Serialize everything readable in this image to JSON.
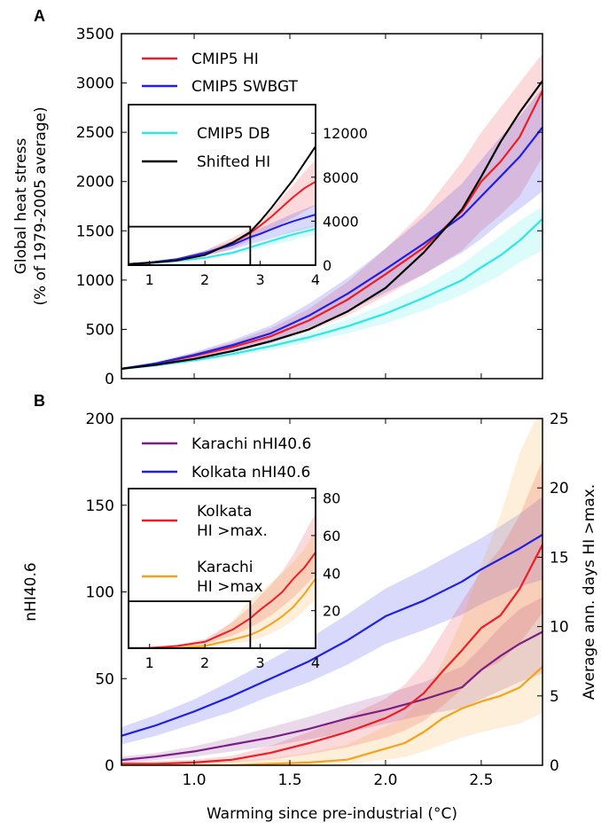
{
  "chart_data": [
    {
      "panel_letter": "A",
      "type": "line",
      "ylabel": [
        "Global heat stress",
        "(% of 1979-2005 average)"
      ],
      "xlim": [
        0.62,
        2.82
      ],
      "ylim": [
        0,
        3500
      ],
      "xticks": [
        1.0,
        1.5,
        2.0,
        2.5
      ],
      "xtick_labels": [],
      "yticks": [
        0,
        500,
        1000,
        1500,
        2000,
        2500,
        3000,
        3500
      ],
      "legend_loc": "top-left",
      "series": [
        {
          "name": "CMIP5 HI",
          "color": "#ee1c24",
          "x": [
            0.62,
            0.8,
            1.0,
            1.2,
            1.4,
            1.6,
            1.8,
            2.0,
            2.2,
            2.4,
            2.5,
            2.6,
            2.7,
            2.82
          ],
          "y": [
            100,
            150,
            230,
            320,
            430,
            590,
            800,
            1060,
            1330,
            1700,
            2000,
            2200,
            2450,
            2920
          ],
          "band_low": [
            100,
            140,
            200,
            270,
            360,
            480,
            640,
            840,
            1060,
            1300,
            1500,
            1660,
            1850,
            2250
          ],
          "band_high": [
            100,
            160,
            260,
            370,
            510,
            710,
            980,
            1320,
            1700,
            2200,
            2500,
            2750,
            3000,
            3300
          ]
        },
        {
          "name": "CMIP5 SWBGT",
          "color": "#1f1fe6",
          "x": [
            0.62,
            0.8,
            1.0,
            1.2,
            1.4,
            1.6,
            1.8,
            2.0,
            2.2,
            2.4,
            2.5,
            2.6,
            2.7,
            2.82
          ],
          "y": [
            100,
            155,
            240,
            340,
            460,
            640,
            860,
            1110,
            1370,
            1650,
            1850,
            2050,
            2250,
            2550
          ],
          "band_low": [
            100,
            140,
            210,
            290,
            380,
            520,
            680,
            870,
            1060,
            1280,
            1420,
            1580,
            1720,
            1900
          ],
          "band_high": [
            100,
            170,
            270,
            390,
            540,
            760,
            1020,
            1320,
            1640,
            1980,
            2220,
            2450,
            2660,
            2950
          ]
        },
        {
          "name": "CMIP5 DB",
          "color": "#2de6e6",
          "x": [
            0.62,
            0.8,
            1.0,
            1.2,
            1.4,
            1.6,
            1.8,
            2.0,
            2.2,
            2.4,
            2.5,
            2.6,
            2.7,
            2.82
          ],
          "y": [
            100,
            135,
            185,
            250,
            330,
            420,
            530,
            660,
            820,
            1000,
            1130,
            1250,
            1400,
            1620
          ],
          "band_low": [
            100,
            128,
            170,
            225,
            290,
            370,
            460,
            560,
            690,
            850,
            950,
            1050,
            1180,
            1300
          ],
          "band_high": [
            100,
            142,
            200,
            275,
            370,
            470,
            600,
            760,
            940,
            1160,
            1310,
            1450,
            1600,
            1750
          ]
        },
        {
          "name": "Shifted HI",
          "color": "#000000",
          "x": [
            0.62,
            0.8,
            1.0,
            1.2,
            1.4,
            1.6,
            1.8,
            2.0,
            2.2,
            2.3,
            2.4,
            2.5,
            2.6,
            2.7,
            2.82
          ],
          "y": [
            100,
            140,
            200,
            280,
            380,
            500,
            680,
            920,
            1280,
            1500,
            1720,
            2050,
            2400,
            2700,
            3020
          ]
        }
      ],
      "inset": {
        "xlim": [
          0.62,
          4.0
        ],
        "ylim": [
          0,
          14600
        ],
        "xticks": [
          1,
          2,
          3,
          4
        ],
        "yticks": [
          0,
          4000,
          8000,
          12000
        ],
        "box_x": 2.82,
        "box_y": 3500,
        "series": [
          {
            "name": "CMIP5 HI",
            "color": "#ee1c24",
            "x": [
              0.62,
              1.0,
              1.5,
              2.0,
              2.5,
              2.82,
              3.0,
              3.2,
              3.4,
              3.6,
              3.8,
              4.0
            ],
            "y": [
              100,
              230,
              520,
              1060,
              2000,
              2920,
              3600,
              4400,
              5300,
              6200,
              7000,
              7600
            ],
            "band_low": [
              100,
              200,
              440,
              840,
              1500,
              2250,
              2700,
              3200,
              3800,
              4300,
              4900,
              5400
            ],
            "band_high": [
              100,
              260,
              620,
              1320,
              2500,
              3300,
              4100,
              5000,
              6200,
              7300,
              8500,
              9600
            ]
          },
          {
            "name": "CMIP5 SWBGT",
            "color": "#1f1fe6",
            "x": [
              0.62,
              1.0,
              1.5,
              2.0,
              2.5,
              2.82,
              3.0,
              3.2,
              3.4,
              3.6,
              3.8,
              4.0
            ],
            "y": [
              100,
              240,
              550,
              1110,
              1850,
              2550,
              2850,
              3250,
              3650,
              4000,
              4300,
              4600
            ],
            "band_low": [
              100,
              210,
              460,
              870,
              1420,
              1900,
              2150,
              2450,
              2750,
              3000,
              3250,
              3500
            ],
            "band_high": [
              100,
              270,
              650,
              1320,
              2220,
              2950,
              3350,
              3800,
              4250,
              4700,
              5100,
              5500
            ]
          },
          {
            "name": "CMIP5 DB",
            "color": "#2de6e6",
            "x": [
              0.62,
              1.0,
              1.5,
              2.0,
              2.5,
              2.82,
              3.0,
              3.2,
              3.4,
              3.6,
              3.8,
              4.0
            ],
            "y": [
              100,
              185,
              370,
              660,
              1130,
              1620,
              1900,
              2200,
              2500,
              2800,
              3050,
              3300
            ],
            "band_low": [
              100,
              170,
              330,
              560,
              950,
              1300,
              1550,
              1800,
              2050,
              2300,
              2550,
              2750
            ],
            "band_high": [
              100,
              200,
              420,
              760,
              1310,
              1750,
              2100,
              2450,
              2800,
              3150,
              3450,
              3700
            ]
          },
          {
            "name": "Shifted HI",
            "color": "#000000",
            "x": [
              0.62,
              1.0,
              1.5,
              2.0,
              2.5,
              2.82,
              3.0,
              3.2,
              3.4,
              3.6,
              3.8,
              4.0
            ],
            "y": [
              100,
              200,
              430,
              920,
              2050,
              3020,
              4000,
              5200,
              6500,
              7800,
              9300,
              10800
            ]
          }
        ]
      }
    },
    {
      "panel_letter": "B",
      "type": "line",
      "xlabel": "Warming since pre-industrial (°C)",
      "ylabel": "nHI40.6",
      "ylabel_right": "Average ann. days HI >max.",
      "xlim": [
        0.62,
        2.82
      ],
      "ylim": [
        0,
        200
      ],
      "ylim_right": [
        0,
        25
      ],
      "xticks": [
        1.0,
        1.5,
        2.0,
        2.5
      ],
      "xtick_labels": [
        "1.0",
        "1.5",
        "2.0",
        "2.5"
      ],
      "yticks": [
        0,
        50,
        100,
        150,
        200
      ],
      "yticks_right": [
        0,
        5,
        10,
        15,
        20,
        25
      ],
      "legend_loc": "top-left",
      "series": [
        {
          "name": "Karachi nHI40.6",
          "color": "#7b1f86",
          "axis": "left",
          "x": [
            0.62,
            0.8,
            1.0,
            1.2,
            1.4,
            1.6,
            1.8,
            2.0,
            2.2,
            2.4,
            2.5,
            2.6,
            2.7,
            2.82
          ],
          "y": [
            3,
            5,
            8,
            12,
            16,
            21,
            27,
            32,
            38,
            45,
            55,
            63,
            70,
            77
          ],
          "band_low": [
            1,
            3,
            5,
            8,
            11,
            15,
            19,
            24,
            29,
            33,
            38,
            43,
            48,
            53
          ],
          "band_high": [
            5,
            7,
            11,
            16,
            22,
            28,
            35,
            41,
            48,
            57,
            68,
            80,
            90,
            97
          ]
        },
        {
          "name": "Kolkata nHI40.6",
          "color": "#1f1fe6",
          "axis": "left",
          "x": [
            0.62,
            0.8,
            1.0,
            1.2,
            1.4,
            1.6,
            1.8,
            2.0,
            2.2,
            2.4,
            2.5,
            2.6,
            2.7,
            2.82
          ],
          "y": [
            17,
            23,
            31,
            40,
            50,
            60,
            72,
            86,
            95,
            106,
            113,
            119,
            125,
            133
          ],
          "band_low": [
            12,
            17,
            24,
            31,
            40,
            48,
            58,
            70,
            78,
            87,
            93,
            98,
            103,
            107
          ],
          "band_high": [
            22,
            29,
            38,
            49,
            61,
            73,
            87,
            102,
            113,
            125,
            131,
            138,
            145,
            155
          ]
        },
        {
          "name": "Kolkata\nHI >max.",
          "color": "#ee1c24",
          "axis": "right",
          "x": [
            0.62,
            0.8,
            1.0,
            1.2,
            1.4,
            1.6,
            1.8,
            2.0,
            2.1,
            2.2,
            2.3,
            2.4,
            2.5,
            2.6,
            2.7,
            2.82
          ],
          "y": [
            0.1,
            0.1,
            0.2,
            0.4,
            0.9,
            1.6,
            2.4,
            3.4,
            4.1,
            5.2,
            6.8,
            8.3,
            9.9,
            10.8,
            12.7,
            15.9
          ],
          "band_low": [
            0,
            0,
            0.1,
            0.2,
            0.4,
            0.8,
            1.3,
            2.0,
            2.5,
            3.2,
            4.3,
            5.5,
            6.8,
            7.5,
            8.8,
            11.0
          ],
          "band_high": [
            0.2,
            0.3,
            0.4,
            0.7,
            1.4,
            2.4,
            3.5,
            4.8,
            5.8,
            7.4,
            9.6,
            11.8,
            14.0,
            15.6,
            18.0,
            22.0
          ]
        },
        {
          "name": "Karachi\nHI >max",
          "color": "#f5a21b",
          "axis": "right",
          "x": [
            0.62,
            0.8,
            1.0,
            1.2,
            1.4,
            1.6,
            1.8,
            2.0,
            2.1,
            2.2,
            2.3,
            2.4,
            2.5,
            2.6,
            2.7,
            2.82
          ],
          "y": [
            0,
            0,
            0,
            0,
            0.1,
            0.2,
            0.4,
            1.2,
            1.6,
            2.4,
            3.4,
            4.1,
            4.6,
            5.0,
            5.6,
            7.1
          ],
          "band_low": [
            0,
            0,
            0,
            0,
            0,
            0.05,
            0.1,
            0.4,
            0.6,
            1.0,
            1.5,
            2.0,
            2.4,
            2.7,
            3.0,
            3.8
          ],
          "band_high": [
            0,
            0.1,
            0.2,
            0.3,
            0.5,
            0.9,
            1.5,
            2.8,
            3.5,
            5.0,
            7.5,
            10.5,
            14.5,
            18.0,
            22.5,
            26.0
          ]
        }
      ],
      "inset": {
        "xlim": [
          0.62,
          4.0
        ],
        "ylim": [
          0,
          85
        ],
        "xticks": [
          1,
          2,
          3,
          4
        ],
        "yticks": [
          20,
          40,
          60,
          80
        ],
        "box_x": 2.82,
        "box_y": 25,
        "series": [
          {
            "name": "Kolkata\nHI >max.",
            "color": "#ee1c24",
            "x": [
              0.62,
              1.0,
              1.5,
              2.0,
              2.5,
              2.82,
              3.0,
              3.2,
              3.4,
              3.6,
              3.8,
              4.0
            ],
            "y": [
              0.1,
              0.2,
              1.2,
              3.4,
              9.9,
              15.9,
              20.5,
              25.0,
              30.0,
              37.0,
              43.0,
              51.0
            ],
            "band_low": [
              0,
              0.1,
              0.6,
              2.0,
              6.8,
              11.0,
              14.0,
              17.5,
              22.0,
              27.0,
              33.0,
              39.0
            ],
            "band_high": [
              0.2,
              0.4,
              1.9,
              4.8,
              14.0,
              22.0,
              28.0,
              34.0,
              41.0,
              50.0,
              61.0,
              72.0
            ]
          },
          {
            "name": "Karachi\nHI >max",
            "color": "#f5a21b",
            "x": [
              0.62,
              1.0,
              1.5,
              2.0,
              2.5,
              2.82,
              3.0,
              3.2,
              3.4,
              3.6,
              3.8,
              4.0
            ],
            "y": [
              0,
              0,
              0.1,
              1.2,
              4.6,
              7.1,
              9.5,
              13.0,
              17.0,
              22.0,
              29.0,
              37.0
            ],
            "band_low": [
              0,
              0,
              0,
              0.4,
              2.4,
              3.8,
              5.5,
              8.0,
              11.0,
              15.0,
              20.0,
              26.0
            ],
            "band_high": [
              0,
              0.2,
              0.7,
              2.8,
              14.5,
              26.0,
              30.0,
              35.0,
              40.0,
              46.0,
              53.0,
              62.0
            ]
          }
        ]
      }
    }
  ]
}
